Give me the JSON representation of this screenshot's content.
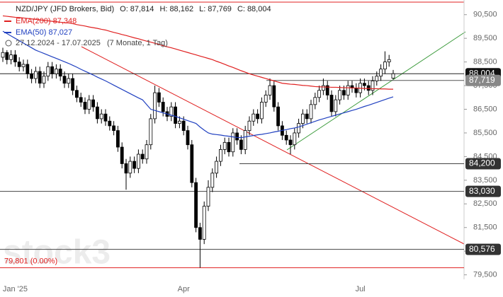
{
  "chart_data": {
    "type": "candlestick",
    "title": "NZD/JPY (JFD Brokers, Bid)",
    "header_labels": [
      "O:",
      "H:",
      "L:",
      "C:"
    ],
    "header_values": [
      {
        "value": 87.814,
        "label": "87,814"
      },
      {
        "value": 88.162,
        "label": "88,162"
      },
      {
        "value": 87.769,
        "label": "87,769"
      },
      {
        "value": 88.004,
        "label": "88,004"
      }
    ],
    "date_range": "27.12.2024 - 17.07.2025",
    "date_range_note": "(7 Monate, 1 Tag)",
    "watermark": "stock3",
    "up_color": "#ffffff",
    "down_color": "#000000",
    "categories": [
      null,
      null,
      null,
      "Jan '25",
      null,
      null,
      null,
      null,
      null,
      null,
      null,
      null,
      null,
      null,
      null,
      null,
      null,
      null,
      null,
      null,
      null,
      null,
      null,
      null,
      null,
      null,
      null,
      null,
      null,
      null,
      null,
      null,
      null,
      null,
      null,
      null,
      null,
      null,
      null,
      null,
      null,
      null,
      null,
      null,
      "Apr",
      null,
      null,
      null,
      null,
      null,
      null,
      null,
      null,
      null,
      null,
      null,
      null,
      null,
      null,
      null,
      null,
      null,
      null,
      null,
      null,
      null,
      null,
      null,
      null,
      null,
      null,
      null,
      null,
      null,
      null,
      null,
      null,
      null,
      null,
      null,
      null,
      null,
      null,
      null,
      null,
      null,
      null,
      "Jul",
      null,
      null,
      null,
      null,
      null,
      null,
      null,
      null
    ],
    "open": [
      88.7,
      88.9,
      88.6,
      88.8,
      88.5,
      88.3,
      88.4,
      88.0,
      87.8,
      88.1,
      87.6,
      87.9,
      88.3,
      88.0,
      88.2,
      87.9,
      87.6,
      87.8,
      87.3,
      87.0,
      86.8,
      86.5,
      86.9,
      86.6,
      86.1,
      86.3,
      86.0,
      85.8,
      85.6,
      84.9,
      84.2,
      83.8,
      84.3,
      84.0,
      84.6,
      84.4,
      85.0,
      86.1,
      87.2,
      86.8,
      86.4,
      86.2,
      86.6,
      85.9,
      86.0,
      85.6,
      85.0,
      83.4,
      81.5,
      81.0,
      82.4,
      83.2,
      83.8,
      84.3,
      84.8,
      85.1,
      84.7,
      85.5,
      85.2,
      84.8,
      85.6,
      86.0,
      86.3,
      86.1,
      86.8,
      87.1,
      87.5,
      86.6,
      85.8,
      85.4,
      85.2,
      85.0,
      85.5,
      85.9,
      86.3,
      86.1,
      86.7,
      87.0,
      87.3,
      87.5,
      87.1,
      86.4,
      86.9,
      87.3,
      87.1,
      87.5,
      87.4,
      87.2,
      87.6,
      87.5,
      87.3,
      87.7,
      87.9,
      88.2,
      88.5,
      87.814
    ],
    "high": [
      89.1,
      89.0,
      89.0,
      89.0,
      88.7,
      88.6,
      88.6,
      88.2,
      88.3,
      88.3,
      88.1,
      88.5,
      88.5,
      88.4,
      88.4,
      88.1,
      88.0,
      88.0,
      87.5,
      87.2,
      87.0,
      87.1,
      87.1,
      86.8,
      86.5,
      86.5,
      86.2,
      86.0,
      85.8,
      85.1,
      84.4,
      84.5,
      84.5,
      84.8,
      84.8,
      85.2,
      86.3,
      87.5,
      87.4,
      87.0,
      86.6,
      86.8,
      86.8,
      86.2,
      86.2,
      85.8,
      85.2,
      83.6,
      81.7,
      82.6,
      83.5,
      84.0,
      84.5,
      85.0,
      85.3,
      85.3,
      85.7,
      85.7,
      85.4,
      85.8,
      86.2,
      86.5,
      86.5,
      87.0,
      87.3,
      87.8,
      87.7,
      86.8,
      86.0,
      85.6,
      85.4,
      85.7,
      86.1,
      86.5,
      86.5,
      86.9,
      87.2,
      87.5,
      87.8,
      87.7,
      87.3,
      87.1,
      87.5,
      87.5,
      87.7,
      87.7,
      87.6,
      87.8,
      87.8,
      87.7,
      87.9,
      88.1,
      88.4,
      88.95,
      88.8,
      88.162
    ],
    "low": [
      88.5,
      88.4,
      88.4,
      88.3,
      88.1,
      88.1,
      87.8,
      87.6,
      87.6,
      87.4,
      87.4,
      87.7,
      87.8,
      87.8,
      87.7,
      87.4,
      87.4,
      87.1,
      86.8,
      86.6,
      86.3,
      86.3,
      86.4,
      85.9,
      85.9,
      85.8,
      85.6,
      85.4,
      84.7,
      84.0,
      83.1,
      83.6,
      83.8,
      83.8,
      84.2,
      84.2,
      84.8,
      85.9,
      86.6,
      86.2,
      86.0,
      86.0,
      85.7,
      85.7,
      85.4,
      84.8,
      83.2,
      81.3,
      79.801,
      80.8,
      82.2,
      83.0,
      83.6,
      84.1,
      84.6,
      84.5,
      84.5,
      85.0,
      84.6,
      84.6,
      85.4,
      85.8,
      85.9,
      85.9,
      86.6,
      86.9,
      86.4,
      85.6,
      85.2,
      85.0,
      84.6,
      84.8,
      85.3,
      85.7,
      85.9,
      85.9,
      86.5,
      86.8,
      87.1,
      86.9,
      86.2,
      86.2,
      86.7,
      86.9,
      86.9,
      87.2,
      87.0,
      87.0,
      87.3,
      87.1,
      87.1,
      87.5,
      87.7,
      88.0,
      88.3,
      87.769
    ],
    "close": [
      88.9,
      88.6,
      88.8,
      88.5,
      88.3,
      88.4,
      88.0,
      87.8,
      88.1,
      87.6,
      87.9,
      88.3,
      88.0,
      88.2,
      87.9,
      87.6,
      87.8,
      87.3,
      87.0,
      86.8,
      86.5,
      86.9,
      86.6,
      86.1,
      86.3,
      86.0,
      85.8,
      85.6,
      84.9,
      84.2,
      83.8,
      84.3,
      84.0,
      84.6,
      84.4,
      85.0,
      86.1,
      87.2,
      86.8,
      86.4,
      86.2,
      86.6,
      85.9,
      86.0,
      85.6,
      85.0,
      83.4,
      81.5,
      81.0,
      82.4,
      83.2,
      83.8,
      84.3,
      84.8,
      85.1,
      84.7,
      85.5,
      85.2,
      84.8,
      85.6,
      86.0,
      86.3,
      86.1,
      86.8,
      87.1,
      87.5,
      86.6,
      85.8,
      85.4,
      85.2,
      85.0,
      85.5,
      85.9,
      86.3,
      86.1,
      86.7,
      87.0,
      87.3,
      87.5,
      87.1,
      86.4,
      86.9,
      87.3,
      87.1,
      87.5,
      87.4,
      87.2,
      87.6,
      87.5,
      87.3,
      87.7,
      87.9,
      88.2,
      88.5,
      88.6,
      88.004
    ],
    "series": [
      {
        "name": "EMA(200)",
        "color": "#e02020",
        "last_label": "87,348",
        "values": [
          90.45,
          90.43,
          90.41,
          90.39,
          90.38,
          90.36,
          90.34,
          90.32,
          90.3,
          90.28,
          90.26,
          90.24,
          90.22,
          90.2,
          90.18,
          90.16,
          90.15,
          90.12,
          90.08,
          90.05,
          90.02,
          89.98,
          89.95,
          89.92,
          89.88,
          89.85,
          89.8,
          89.75,
          89.71,
          89.66,
          89.62,
          89.57,
          89.52,
          89.48,
          89.43,
          89.38,
          89.34,
          89.29,
          89.24,
          89.19,
          89.14,
          89.1,
          89.05,
          89.0,
          88.95,
          88.9,
          88.85,
          88.8,
          88.75,
          88.7,
          88.65,
          88.6,
          88.53,
          88.47,
          88.4,
          88.33,
          88.27,
          88.2,
          88.13,
          88.07,
          88.0,
          87.95,
          87.9,
          87.85,
          87.8,
          87.75,
          87.7,
          87.65,
          87.6,
          87.58,
          87.56,
          87.55,
          87.53,
          87.51,
          87.5,
          87.48,
          87.46,
          87.45,
          87.44,
          87.44,
          87.43,
          87.43,
          87.42,
          87.41,
          87.41,
          87.4,
          87.4,
          87.39,
          87.38,
          87.38,
          87.37,
          87.37,
          87.36,
          87.36,
          87.35,
          87.348
        ]
      },
      {
        "name": "EMA(50)",
        "color": "#2040c0",
        "last_label": "87,027",
        "values": [
          89.8,
          89.7,
          89.6,
          89.5,
          89.4,
          89.3,
          89.2,
          89.1,
          89.0,
          88.93,
          88.86,
          88.79,
          88.72,
          88.65,
          88.58,
          88.51,
          88.44,
          88.36,
          88.28,
          88.19,
          88.11,
          88.03,
          87.95,
          87.86,
          87.78,
          87.7,
          87.61,
          87.52,
          87.43,
          87.34,
          87.25,
          87.16,
          87.07,
          86.98,
          86.9,
          86.7,
          86.5,
          86.45,
          86.4,
          86.35,
          86.3,
          86.25,
          86.2,
          86.14,
          86.08,
          86.02,
          85.96,
          85.9,
          85.75,
          85.62,
          85.5,
          85.45,
          85.43,
          85.41,
          85.38,
          85.36,
          85.33,
          85.31,
          85.3,
          85.33,
          85.36,
          85.39,
          85.42,
          85.44,
          85.47,
          85.5,
          85.54,
          85.57,
          85.61,
          85.64,
          85.68,
          85.71,
          85.75,
          85.81,
          85.87,
          85.93,
          85.99,
          86.05,
          86.1,
          86.15,
          86.2,
          86.25,
          86.3,
          86.35,
          86.4,
          86.45,
          86.5,
          86.56,
          86.62,
          86.67,
          86.73,
          86.79,
          86.85,
          86.91,
          86.97,
          87.027
        ]
      }
    ],
    "levels": [
      {
        "value": 88.004,
        "label": "88,004"
      },
      {
        "value": 87.719,
        "label": "87,719"
      },
      {
        "value": 84.2,
        "label": "84,200"
      },
      {
        "value": 83.03,
        "label": "83,030"
      },
      {
        "value": 80.576,
        "label": "80,576"
      },
      {
        "value": 79.801,
        "label": "79,801 (0.00%)"
      }
    ],
    "ylim": [
      79.31,
      91.12
    ],
    "yticks": [
      {
        "value": 79.5,
        "label": "79,500"
      },
      {
        "value": 80.5,
        "label": "80,500"
      },
      {
        "value": 81.5,
        "label": "81,500"
      },
      {
        "value": 82.5,
        "label": "82,500"
      },
      {
        "value": 83.5,
        "label": "83,500"
      },
      {
        "value": 84.5,
        "label": "84,500"
      },
      {
        "value": 85.5,
        "label": "85,500"
      },
      {
        "value": 86.5,
        "label": "86,500"
      },
      {
        "value": 87.5,
        "label": "87,500"
      },
      {
        "value": 88.5,
        "label": "88,500"
      },
      {
        "value": 89.5,
        "label": "89,500"
      },
      {
        "value": 90.5,
        "label": "90,500"
      }
    ]
  }
}
